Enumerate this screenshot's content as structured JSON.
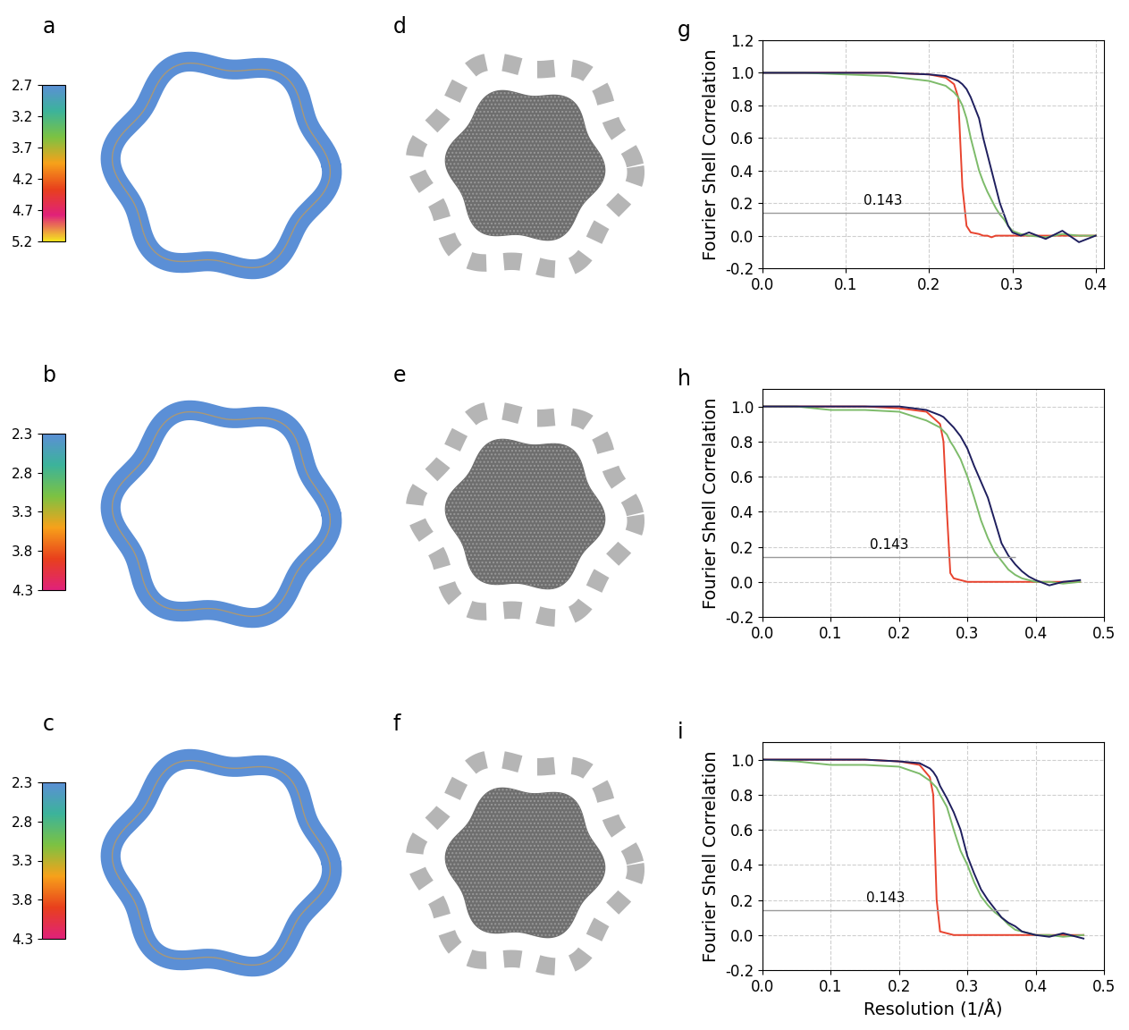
{
  "maps": [
    {
      "label": "a",
      "colorbar": {
        "range": [
          2.7,
          5.2
        ],
        "ticks": [
          2.7,
          3.2,
          3.7,
          4.2,
          4.7,
          5.2
        ],
        "colors": [
          "#5b8fd6",
          "#3cb39a",
          "#7cc242",
          "#f7a11a",
          "#e8401c",
          "#e0217a",
          "#f5e61d"
        ]
      }
    },
    {
      "label": "b",
      "colorbar": {
        "range": [
          2.3,
          4.3
        ],
        "ticks": [
          2.3,
          2.8,
          3.3,
          3.8,
          4.3
        ],
        "colors": [
          "#5b8fd6",
          "#3cb39a",
          "#7cc242",
          "#f7a11a",
          "#e8401c",
          "#e0217a"
        ]
      }
    },
    {
      "label": "c",
      "colorbar": {
        "range": [
          2.3,
          4.3
        ],
        "ticks": [
          2.3,
          2.8,
          3.3,
          3.8,
          4.3
        ],
        "colors": [
          "#5b8fd6",
          "#3cb39a",
          "#7cc242",
          "#f7a11a",
          "#e8401c",
          "#e0217a"
        ]
      }
    }
  ],
  "slices": [
    {
      "label": "d"
    },
    {
      "label": "e"
    },
    {
      "label": "f"
    }
  ],
  "chart_data": [
    {
      "type": "line",
      "title": "g",
      "ylabel": "Fourier Shell Correlation",
      "x": [
        0,
        0.05,
        0.1,
        0.15,
        0.2,
        0.22,
        0.23,
        0.235,
        0.24,
        0.245,
        0.25,
        0.26,
        0.265,
        0.27,
        0.275,
        0.28,
        0.285,
        0.29,
        0.295,
        0.3,
        0.31,
        0.32,
        0.34,
        0.36,
        0.38,
        0.4
      ],
      "series": [
        {
          "color": "#e8432e",
          "values": [
            1,
            1,
            1,
            1,
            0.99,
            0.97,
            0.93,
            0.85,
            0.3,
            0.06,
            0.02,
            0.01,
            0.0,
            0.0,
            -0.01,
            0,
            0,
            0,
            0,
            0,
            0,
            0,
            0,
            0,
            0,
            0
          ]
        },
        {
          "color": "#7dbb6a",
          "values": [
            1,
            1,
            0.99,
            0.98,
            0.95,
            0.92,
            0.88,
            0.85,
            0.8,
            0.72,
            0.6,
            0.4,
            0.33,
            0.27,
            0.22,
            0.17,
            0.13,
            0.1,
            0.06,
            0.03,
            0.01,
            0.0,
            -0.01,
            0.01,
            0.0,
            0.0
          ]
        },
        {
          "color": "#1f1f5e",
          "values": [
            1,
            1,
            1,
            1,
            0.99,
            0.98,
            0.96,
            0.95,
            0.93,
            0.9,
            0.85,
            0.72,
            0.6,
            0.5,
            0.4,
            0.3,
            0.2,
            0.13,
            0.06,
            0.02,
            0.0,
            0.02,
            -0.02,
            0.03,
            -0.04,
            0.0
          ]
        }
      ],
      "threshold": {
        "value": 0.143,
        "label": "0.143",
        "x_range": [
          0,
          0.29
        ]
      },
      "xlim": [
        0,
        0.41
      ],
      "xticks": [
        0.0,
        0.1,
        0.2,
        0.3,
        0.4
      ],
      "ylim": [
        -0.2,
        1.2
      ],
      "yticks": [
        -0.2,
        0.0,
        0.2,
        0.4,
        0.6,
        0.8,
        1.0,
        1.2
      ],
      "grid": true
    },
    {
      "type": "line",
      "title": "h",
      "ylabel": "Fourier Shell Correlation",
      "x": [
        0,
        0.05,
        0.1,
        0.15,
        0.2,
        0.24,
        0.26,
        0.265,
        0.27,
        0.275,
        0.28,
        0.29,
        0.3,
        0.31,
        0.32,
        0.33,
        0.34,
        0.35,
        0.36,
        0.37,
        0.38,
        0.39,
        0.4,
        0.42,
        0.44,
        0.465
      ],
      "series": [
        {
          "color": "#e8432e",
          "values": [
            1,
            1,
            1,
            1,
            0.99,
            0.97,
            0.9,
            0.8,
            0.4,
            0.05,
            0.02,
            0.01,
            0,
            0,
            0,
            0,
            0,
            0,
            0,
            0,
            0,
            0,
            0,
            0,
            0,
            0
          ]
        },
        {
          "color": "#7dbb6a",
          "values": [
            1,
            1,
            0.98,
            0.98,
            0.97,
            0.92,
            0.88,
            0.86,
            0.84,
            0.8,
            0.77,
            0.7,
            0.6,
            0.48,
            0.35,
            0.25,
            0.17,
            0.12,
            0.07,
            0.04,
            0.02,
            0.01,
            0,
            0,
            -0.01,
            0
          ]
        },
        {
          "color": "#1f1f5e",
          "values": [
            1,
            1,
            1,
            1,
            1,
            0.98,
            0.95,
            0.94,
            0.92,
            0.9,
            0.88,
            0.83,
            0.76,
            0.66,
            0.57,
            0.48,
            0.35,
            0.22,
            0.15,
            0.1,
            0.06,
            0.03,
            0.01,
            -0.02,
            0.0,
            0.01
          ]
        }
      ],
      "threshold": {
        "value": 0.143,
        "label": "0.143",
        "x_range": [
          0,
          0.37
        ]
      },
      "xlim": [
        0,
        0.5
      ],
      "xticks": [
        0.0,
        0.1,
        0.2,
        0.3,
        0.4,
        0.5
      ],
      "ylim": [
        -0.2,
        1.1
      ],
      "yticks": [
        -0.2,
        0.0,
        0.2,
        0.4,
        0.6,
        0.8,
        1.0
      ],
      "grid": true
    },
    {
      "type": "line",
      "title": "i",
      "ylabel": "Fourier Shell Correlation",
      "xlabel": "Resolution (1/Å)",
      "x": [
        0,
        0.05,
        0.1,
        0.15,
        0.2,
        0.23,
        0.245,
        0.25,
        0.255,
        0.26,
        0.27,
        0.28,
        0.29,
        0.3,
        0.31,
        0.32,
        0.33,
        0.34,
        0.35,
        0.36,
        0.37,
        0.38,
        0.4,
        0.42,
        0.44,
        0.47
      ],
      "series": [
        {
          "color": "#e8432e",
          "values": [
            1,
            1,
            1,
            1,
            0.99,
            0.97,
            0.9,
            0.8,
            0.2,
            0.02,
            0.01,
            0,
            0,
            0,
            0,
            0,
            0,
            0,
            0,
            0,
            0,
            0,
            0,
            0,
            0,
            0
          ]
        },
        {
          "color": "#7dbb6a",
          "values": [
            1,
            0.99,
            0.97,
            0.97,
            0.96,
            0.92,
            0.88,
            0.86,
            0.84,
            0.8,
            0.73,
            0.6,
            0.48,
            0.4,
            0.3,
            0.22,
            0.17,
            0.13,
            0.1,
            0.06,
            0.03,
            0.02,
            0,
            0,
            -0.01,
            0
          ]
        },
        {
          "color": "#1f1f5e",
          "values": [
            1,
            1,
            1,
            1,
            0.99,
            0.98,
            0.95,
            0.93,
            0.9,
            0.85,
            0.78,
            0.7,
            0.6,
            0.45,
            0.35,
            0.26,
            0.2,
            0.15,
            0.1,
            0.07,
            0.05,
            0.02,
            0.0,
            -0.01,
            0.01,
            -0.02
          ]
        }
      ],
      "threshold": {
        "value": 0.143,
        "label": "0.143",
        "x_range": [
          0,
          0.36
        ]
      },
      "xlim": [
        0,
        0.5
      ],
      "xticks": [
        0.0,
        0.1,
        0.2,
        0.3,
        0.4,
        0.5
      ],
      "ylim": [
        -0.2,
        1.1
      ],
      "yticks": [
        -0.2,
        0.0,
        0.2,
        0.4,
        0.6,
        0.8,
        1.0
      ],
      "grid": true
    }
  ]
}
